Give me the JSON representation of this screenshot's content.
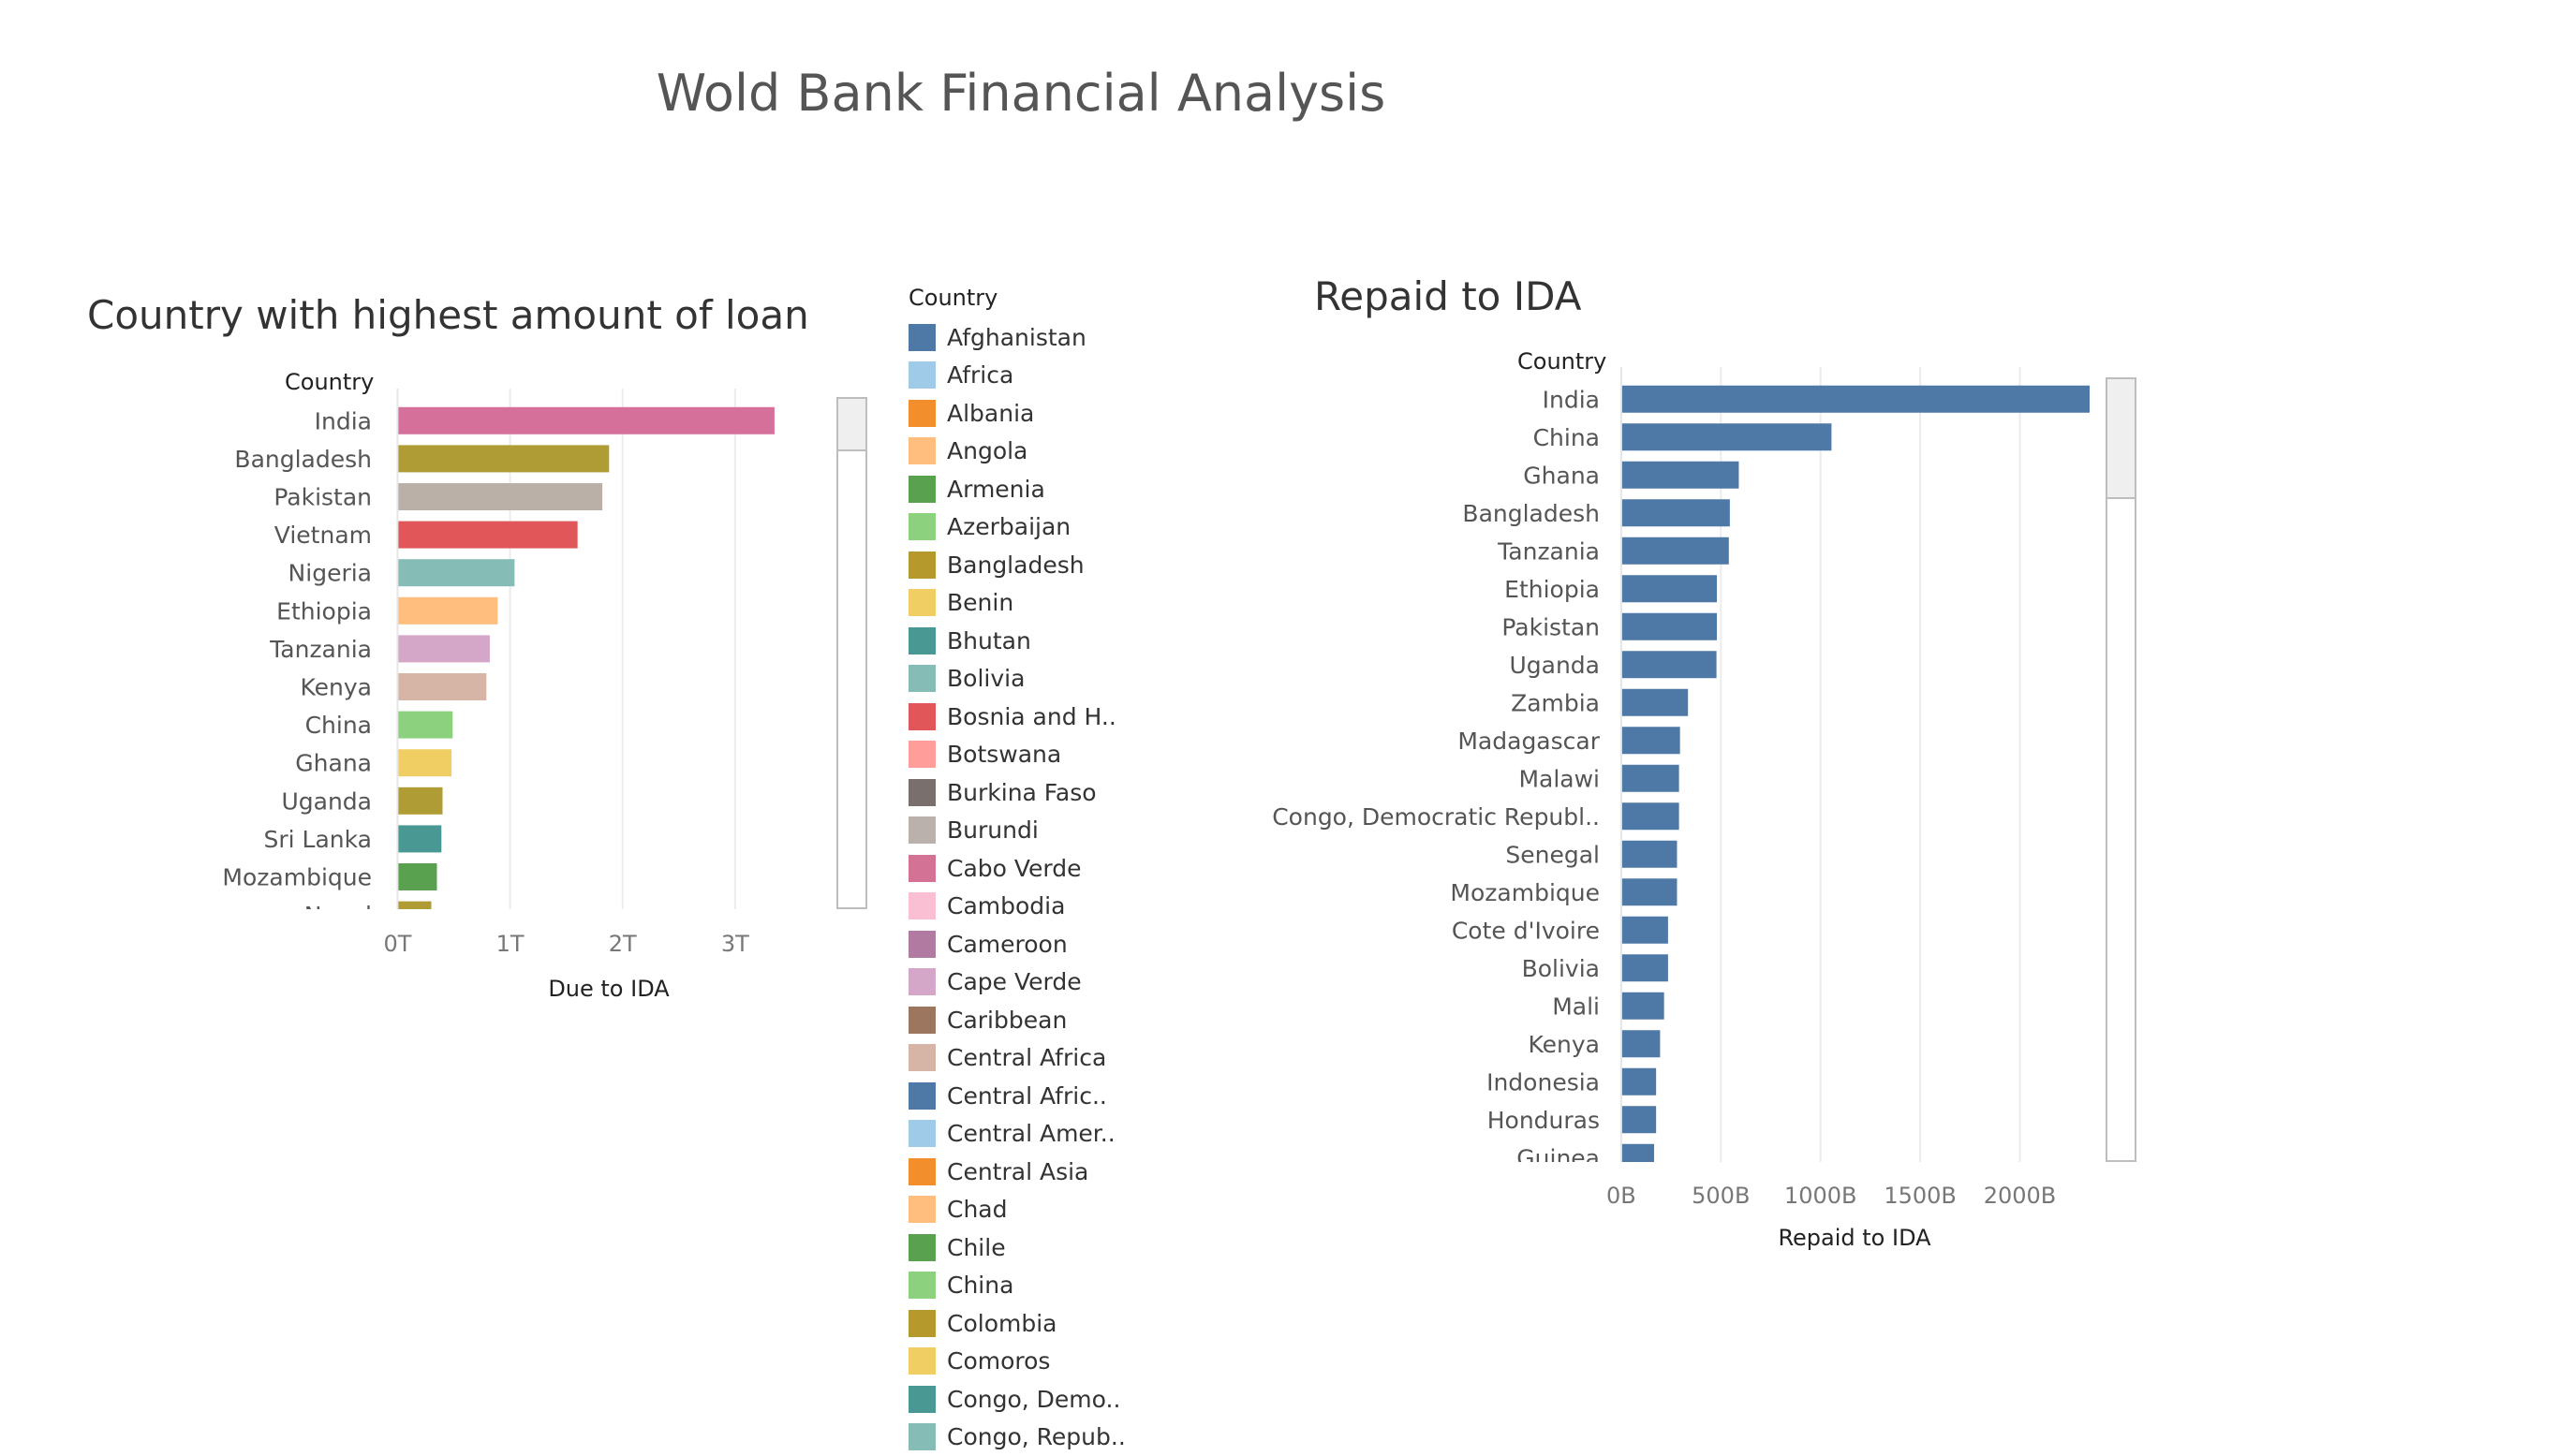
{
  "dashboard": {
    "title": "Wold Bank Financial Analysis"
  },
  "chart_data": [
    {
      "type": "bar",
      "orientation": "horizontal",
      "title": "Country with highest amount of loan",
      "ylabel": "Country",
      "xlabel": "Due to IDA",
      "categories": [
        "India",
        "Bangladesh",
        "Pakistan",
        "Vietnam",
        "Nigeria",
        "Ethiopia",
        "Tanzania",
        "Kenya",
        "China",
        "Ghana",
        "Uganda",
        "Sri Lanka",
        "Mozambique",
        "Nepal"
      ],
      "values": [
        3.35,
        1.88,
        1.82,
        1.6,
        1.04,
        0.89,
        0.82,
        0.79,
        0.49,
        0.48,
        0.4,
        0.39,
        0.35,
        0.3
      ],
      "colors": [
        "#D4709A",
        "#B09C34",
        "#BBB0A8",
        "#E15759",
        "#86BCB6",
        "#FFBE7D",
        "#D4A6C8",
        "#D7B5A6",
        "#8CD17D",
        "#F1CE63",
        "#B09C34",
        "#499894",
        "#59A14F",
        "#B09C34"
      ],
      "xticks": [
        "0T",
        "1T",
        "2T",
        "3T"
      ],
      "xtick_values": [
        0,
        1,
        2,
        3
      ],
      "xlim": [
        -0.12,
        3.9
      ],
      "unit": "T",
      "scrollable": true,
      "scroll_position": 0.0
    },
    {
      "type": "bar",
      "orientation": "horizontal",
      "title": "Repaid to IDA",
      "ylabel": "Country",
      "xlabel": "Repaid to IDA",
      "categories": [
        "India",
        "China",
        "Ghana",
        "Bangladesh",
        "Tanzania",
        "Ethiopia",
        "Pakistan",
        "Uganda",
        "Zambia",
        "Madagascar",
        "Malawi",
        "Congo, Democratic Republ..",
        "Senegal",
        "Mozambique",
        "Cote d'Ivoire",
        "Bolivia",
        "Mali",
        "Kenya",
        "Indonesia",
        "Honduras",
        "Guinea"
      ],
      "values": [
        2350,
        1055,
        590,
        545,
        540,
        480,
        480,
        478,
        335,
        295,
        290,
        290,
        280,
        280,
        235,
        235,
        215,
        195,
        175,
        175,
        165
      ],
      "color": "#4E79A7",
      "xticks": [
        "0B",
        "500B",
        "1000B",
        "1500B",
        "2000B"
      ],
      "xtick_values": [
        0,
        500,
        1000,
        1500,
        2000
      ],
      "xlim": [
        -70,
        2430
      ],
      "unit": "B",
      "scrollable": true,
      "scroll_position": 0.0
    }
  ],
  "legend": {
    "title": "Country",
    "items": [
      {
        "label": "Afghanistan",
        "color": "#4E79A7"
      },
      {
        "label": "Africa",
        "color": "#A0CBE8"
      },
      {
        "label": "Albania",
        "color": "#F28E2B"
      },
      {
        "label": "Angola",
        "color": "#FFBE7D"
      },
      {
        "label": "Armenia",
        "color": "#59A14F"
      },
      {
        "label": "Azerbaijan",
        "color": "#8CD17D"
      },
      {
        "label": "Bangladesh",
        "color": "#B6992D"
      },
      {
        "label": "Benin",
        "color": "#F1CE63"
      },
      {
        "label": "Bhutan",
        "color": "#499894"
      },
      {
        "label": "Bolivia",
        "color": "#86BCB6"
      },
      {
        "label": "Bosnia and H..",
        "color": "#E15759"
      },
      {
        "label": "Botswana",
        "color": "#FF9D9A"
      },
      {
        "label": "Burkina Faso",
        "color": "#79706E"
      },
      {
        "label": "Burundi",
        "color": "#BAB0AC"
      },
      {
        "label": "Cabo Verde",
        "color": "#D37295"
      },
      {
        "label": "Cambodia",
        "color": "#FABFD2"
      },
      {
        "label": "Cameroon",
        "color": "#B07AA1"
      },
      {
        "label": "Cape Verde",
        "color": "#D4A6C8"
      },
      {
        "label": "Caribbean",
        "color": "#9D7660"
      },
      {
        "label": "Central Africa",
        "color": "#D7B5A6"
      },
      {
        "label": "Central Afric..",
        "color": "#4E79A7"
      },
      {
        "label": "Central Amer..",
        "color": "#A0CBE8"
      },
      {
        "label": "Central Asia",
        "color": "#F28E2B"
      },
      {
        "label": "Chad",
        "color": "#FFBE7D"
      },
      {
        "label": "Chile",
        "color": "#59A14F"
      },
      {
        "label": "China",
        "color": "#8CD17D"
      },
      {
        "label": "Colombia",
        "color": "#B6992D"
      },
      {
        "label": "Comoros",
        "color": "#F1CE63"
      },
      {
        "label": "Congo, Demo..",
        "color": "#499894"
      },
      {
        "label": "Congo, Repub..",
        "color": "#86BCB6"
      }
    ]
  }
}
